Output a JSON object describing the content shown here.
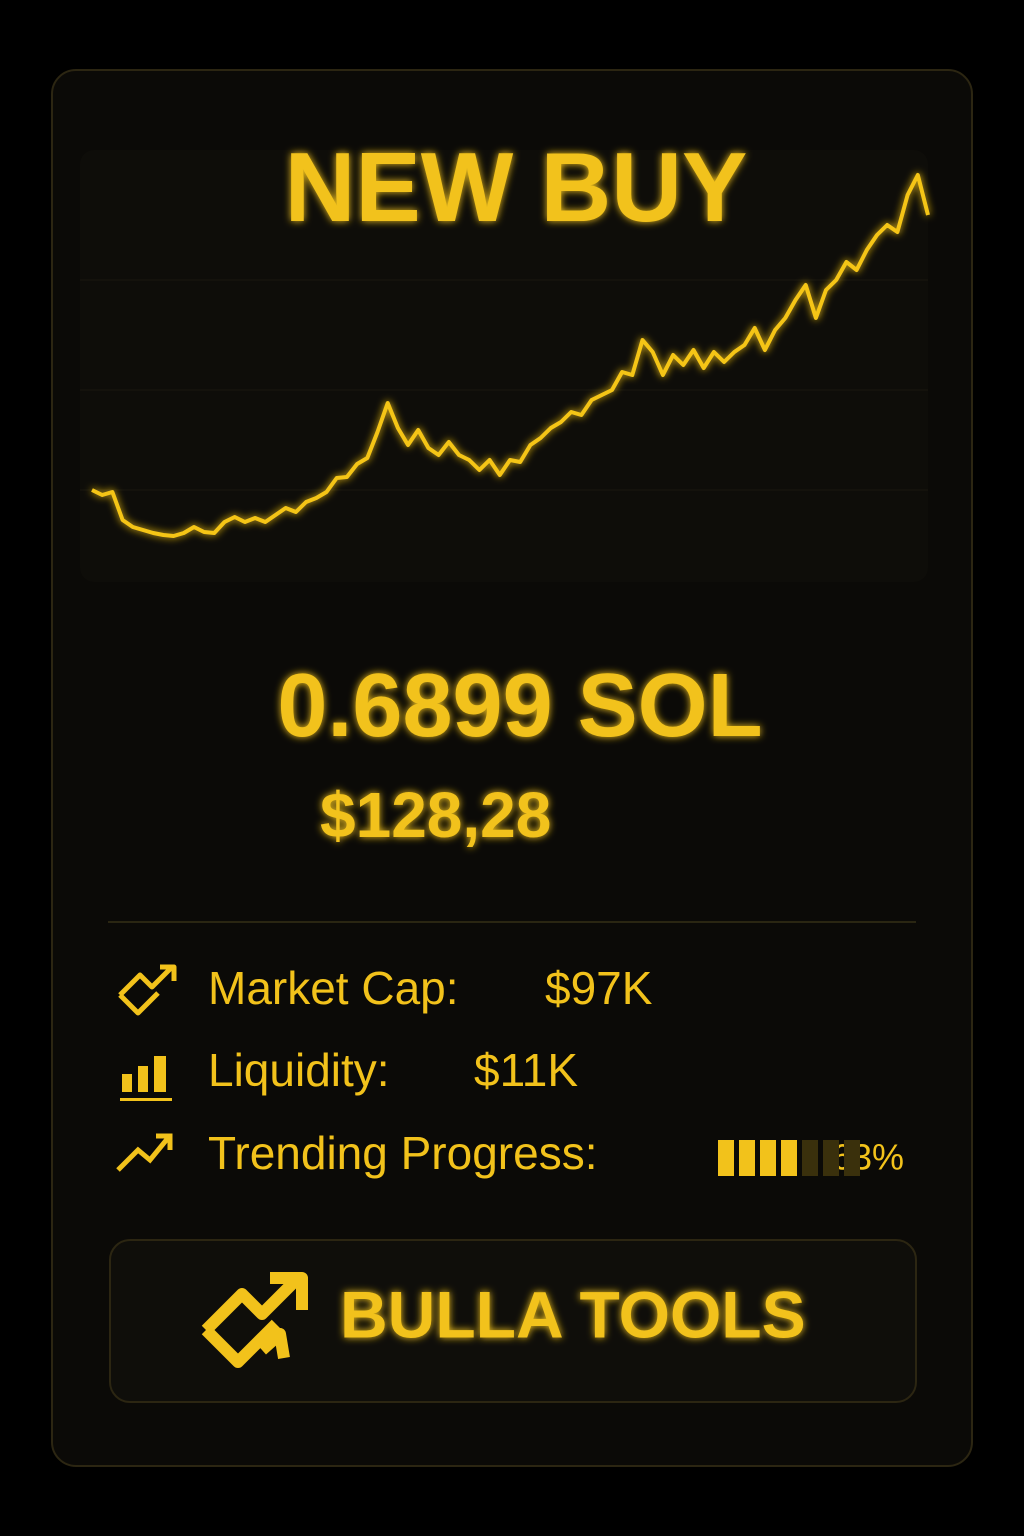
{
  "title": "NEW BUY",
  "chart_data": {
    "type": "line",
    "color": "#f5c518",
    "values": [
      110,
      105,
      108,
      80,
      73,
      70,
      67,
      65,
      64,
      67,
      73,
      68,
      67,
      78,
      83,
      78,
      82,
      78,
      85,
      92,
      88,
      98,
      102,
      108,
      122,
      123,
      136,
      142,
      168,
      197,
      172,
      155,
      170,
      152,
      145,
      158,
      145,
      140,
      130,
      140,
      125,
      140,
      138,
      155,
      162,
      172,
      178,
      188,
      185,
      200,
      205,
      210,
      228,
      225,
      260,
      248,
      225,
      245,
      235,
      250,
      232,
      248,
      238,
      248,
      255,
      272,
      250,
      270,
      282,
      300,
      315,
      282,
      310,
      320,
      338,
      330,
      350,
      365,
      375,
      368,
      405,
      425,
      385
    ]
  },
  "amount": "0.6899 SOL",
  "amount_usd": "$128,28",
  "stats": [
    {
      "label": "Market Cap:",
      "value": "$97K"
    },
    {
      "label": "Liquidity:",
      "value": "$11K"
    },
    {
      "label": "Trending Progress:",
      "value": 63,
      "value_label": "63%"
    }
  ],
  "button": "BULLA TOOLS"
}
